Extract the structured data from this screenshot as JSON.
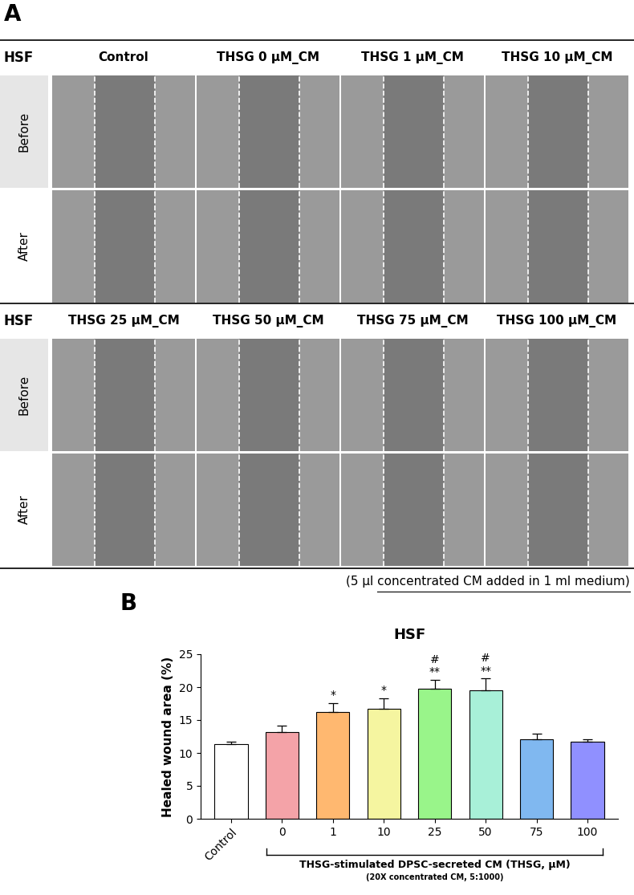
{
  "panel_a": {
    "label": "A",
    "cell_line": "HSF",
    "row_labels": [
      "Before",
      "After"
    ],
    "groups": [
      [
        "Control",
        "THSG 0 μM_CM",
        "THSG 1 μM_CM",
        "THSG 10 μM_CM"
      ],
      [
        "THSG 25 μM_CM",
        "THSG 50 μM_CM",
        "THSG 75 μM_CM",
        "THSG 100 μM_CM"
      ]
    ],
    "note": "(5 μl concentrated CM added in 1 ml medium)"
  },
  "chart_data": {
    "type": "bar",
    "panel_label": "B",
    "title": "HSF",
    "y_label": "Healed wound area (%)",
    "categories": [
      "Control",
      "0",
      "1",
      "10",
      "25",
      "50",
      "75",
      "100"
    ],
    "values": [
      11.4,
      13.2,
      16.2,
      16.7,
      19.7,
      19.5,
      12.1,
      11.7
    ],
    "errors": [
      0.3,
      0.9,
      1.4,
      1.6,
      1.4,
      1.8,
      0.8,
      0.4
    ],
    "colors": [
      "#ffffff",
      "#f4a3a8",
      "#ffb870",
      "#f5f5a0",
      "#99f58a",
      "#a8f0d8",
      "#80b8f0",
      "#9090ff"
    ],
    "significance": [
      null,
      null,
      [
        "*"
      ],
      [
        "*"
      ],
      [
        "**",
        "#"
      ],
      [
        "**",
        "#"
      ],
      null,
      null
    ],
    "group_label": "THSG-stimulated DPSC-secreted CM (THSG, μM)",
    "group_note": "(20X concentrated CM, 5:1000)",
    "ylim": [
      0,
      25
    ],
    "yticks": [
      0,
      5,
      10,
      15,
      20,
      25
    ]
  }
}
